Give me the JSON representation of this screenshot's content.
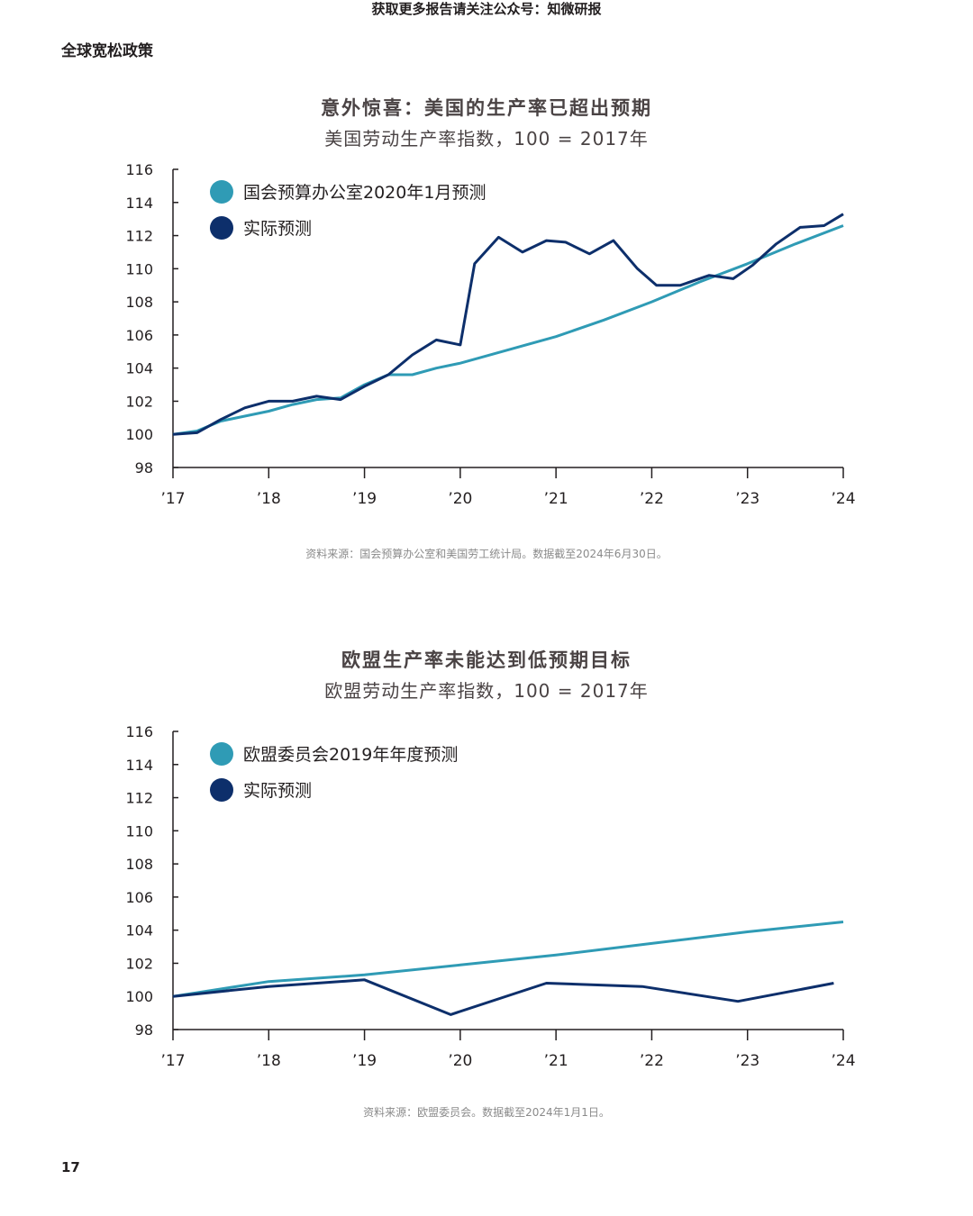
{
  "header": {
    "banner": "获取更多报告请关注公众号：知微研报",
    "section_label": "全球宽松政策"
  },
  "footer": {
    "page_number": "17"
  },
  "colors": {
    "forecast": "#2f9bb5",
    "actual": "#0d2f6b",
    "axis": "#231f20"
  },
  "chart_data": [
    {
      "type": "line",
      "title": "意外惊喜：美国的生产率已超出预期",
      "subtitle": "美国劳动生产率指数，100 = 2017年",
      "source": "资料来源：国会预算办公室和美国劳工统计局。数据截至2024年6月30日。",
      "xlabel": "",
      "ylabel": "",
      "ylim": [
        98,
        116
      ],
      "xlim": [
        2017,
        2024
      ],
      "yticks": [
        98,
        100,
        102,
        104,
        106,
        108,
        110,
        112,
        114,
        116
      ],
      "xticks": [
        {
          "value": 2017,
          "label": "’17"
        },
        {
          "value": 2018,
          "label": "’18"
        },
        {
          "value": 2019,
          "label": "’19"
        },
        {
          "value": 2020,
          "label": "’20"
        },
        {
          "value": 2021,
          "label": "’21"
        },
        {
          "value": 2022,
          "label": "’22"
        },
        {
          "value": 2023,
          "label": "’23"
        },
        {
          "value": 2024,
          "label": "’24"
        }
      ],
      "legend_position": "top-left",
      "series": [
        {
          "name": "国会预算办公室2020年1月预测",
          "color": "#2f9bb5",
          "x": [
            2017,
            2017.25,
            2017.5,
            2017.75,
            2018,
            2018.25,
            2018.5,
            2018.75,
            2019,
            2019.25,
            2019.5,
            2019.75,
            2020,
            2020.5,
            2021,
            2021.5,
            2022,
            2022.5,
            2023,
            2023.5,
            2024
          ],
          "y": [
            100,
            100.2,
            100.8,
            101.1,
            101.4,
            101.8,
            102.1,
            102.2,
            103.0,
            103.6,
            103.6,
            104.0,
            104.3,
            105.1,
            105.9,
            106.9,
            108.0,
            109.2,
            110.3,
            111.5,
            112.6
          ]
        },
        {
          "name": "实际预测",
          "color": "#0d2f6b",
          "x": [
            2017,
            2017.25,
            2017.5,
            2017.75,
            2018,
            2018.25,
            2018.5,
            2018.75,
            2019,
            2019.25,
            2019.5,
            2019.75,
            2020,
            2020.15,
            2020.4,
            2020.65,
            2020.9,
            2021.1,
            2021.35,
            2021.6,
            2021.85,
            2022.05,
            2022.3,
            2022.6,
            2022.85,
            2023.05,
            2023.3,
            2023.55,
            2023.8,
            2024
          ],
          "y": [
            100,
            100.1,
            100.9,
            101.6,
            102.0,
            102.0,
            102.3,
            102.1,
            102.9,
            103.6,
            104.8,
            105.7,
            105.4,
            110.3,
            111.9,
            111.0,
            111.7,
            111.6,
            110.9,
            111.7,
            110.0,
            109.0,
            109.0,
            109.6,
            109.4,
            110.2,
            111.5,
            112.5,
            112.6,
            113.3
          ]
        }
      ]
    },
    {
      "type": "line",
      "title": "欧盟生产率未能达到低预期目标",
      "subtitle": "欧盟劳动生产率指数，100 = 2017年",
      "source": "资料来源：欧盟委员会。数据截至2024年1月1日。",
      "xlabel": "",
      "ylabel": "",
      "ylim": [
        98,
        116
      ],
      "xlim": [
        2017,
        2024
      ],
      "yticks": [
        98,
        100,
        102,
        104,
        106,
        108,
        110,
        112,
        114,
        116
      ],
      "xticks": [
        {
          "value": 2017,
          "label": "’17"
        },
        {
          "value": 2018,
          "label": "’18"
        },
        {
          "value": 2019,
          "label": "’19"
        },
        {
          "value": 2020,
          "label": "’20"
        },
        {
          "value": 2021,
          "label": "’21"
        },
        {
          "value": 2022,
          "label": "’22"
        },
        {
          "value": 2023,
          "label": "’23"
        },
        {
          "value": 2024,
          "label": "’24"
        }
      ],
      "legend_position": "top-left",
      "series": [
        {
          "name": "欧盟委员会2019年年度预测",
          "color": "#2f9bb5",
          "x": [
            2017,
            2018,
            2019,
            2020,
            2021,
            2022,
            2023,
            2024
          ],
          "y": [
            100,
            100.9,
            101.3,
            101.9,
            102.5,
            103.2,
            103.9,
            104.5
          ]
        },
        {
          "name": "实际预测",
          "color": "#0d2f6b",
          "x": [
            2017,
            2018,
            2019,
            2019.9,
            2020.9,
            2021.9,
            2022.9,
            2023.9
          ],
          "y": [
            100,
            100.6,
            101.0,
            98.9,
            100.8,
            100.6,
            99.7,
            100.8
          ]
        }
      ]
    }
  ]
}
